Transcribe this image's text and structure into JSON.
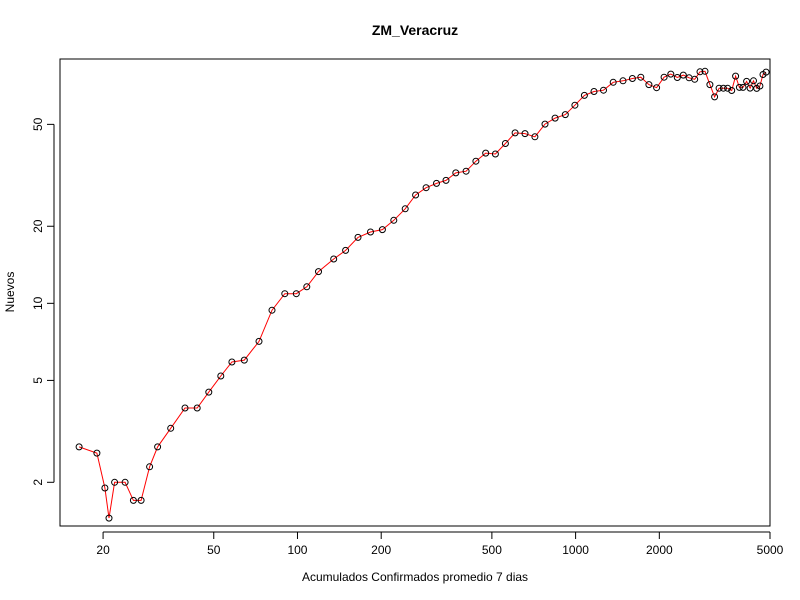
{
  "chart_data": {
    "type": "scatter",
    "title": "ZM_Veracruz",
    "xlabel": "Acumulados Confirmados promedio  7  dias",
    "ylabel": "Nuevos",
    "x_scale": "log",
    "y_scale": "log",
    "xlim": [
      14,
      5000
    ],
    "ylim": [
      1.35,
      90
    ],
    "x_ticks": [
      20,
      50,
      100,
      200,
      500,
      1000,
      2000,
      5000
    ],
    "x_tick_labels": [
      "20",
      "50",
      "100",
      "200",
      "500",
      "1000",
      "2000",
      "5000"
    ],
    "y_ticks": [
      2,
      5,
      10,
      20,
      50
    ],
    "y_tick_labels": [
      "2",
      "5",
      "10",
      "20",
      "50"
    ],
    "grid": false,
    "line_color": "#ff0000",
    "point_color": "#000000",
    "series": [
      {
        "x": [
          16.4,
          19.0,
          20.3,
          21.0,
          22.0,
          24.0,
          25.7,
          27.4,
          29.4,
          31.4,
          35.0,
          39.4,
          43.6,
          48.0,
          53.0,
          58.1,
          64.4,
          72.7,
          81.0,
          90.0,
          99.0,
          108.0,
          119.0,
          135.0,
          149.0,
          165.0,
          183.0,
          202.0,
          222.0,
          244.0,
          266.0,
          290.0,
          316.0,
          342.0,
          371.0,
          404.0,
          438.0,
          475.0,
          515.0,
          559.0,
          606.0,
          658.0,
          714.0,
          776.0,
          844.0,
          918.0,
          994.0,
          1076.0,
          1165.0,
          1260.0,
          1365.0,
          1480.0,
          1600.0,
          1715.0,
          1835.0,
          1955.0,
          2080.0,
          2200.0,
          2320.0,
          2440.0,
          2560.0,
          2680.0,
          2800.0,
          2920.0,
          3040.0,
          3160.0,
          3280.0,
          3400.0,
          3520.0,
          3640.0,
          3760.0,
          3880.0,
          4000.0,
          4120.0,
          4240.0,
          4360.0,
          4480.0,
          4600.0,
          4720.0,
          4840.0
        ],
        "y": [
          2.75,
          2.6,
          1.9,
          1.45,
          2.0,
          2.0,
          1.7,
          1.7,
          2.3,
          2.75,
          3.25,
          3.9,
          3.9,
          4.5,
          5.2,
          5.9,
          6.0,
          7.1,
          9.4,
          10.9,
          10.9,
          11.6,
          13.3,
          14.9,
          16.1,
          18.1,
          19.0,
          19.4,
          21.1,
          23.4,
          26.5,
          28.3,
          29.4,
          30.2,
          32.3,
          32.8,
          35.9,
          38.6,
          38.3,
          42.1,
          46.3,
          46.0,
          44.7,
          50.1,
          52.9,
          54.6,
          59.4,
          64.9,
          67.2,
          68.0,
          73.0,
          74.0,
          75.5,
          76.4,
          71.5,
          69.5,
          76.4,
          78.6,
          76.2,
          77.9,
          76.0,
          75.0,
          80.2,
          80.6,
          71.5,
          64.0,
          69.2,
          69.2,
          69.2,
          67.8,
          77.2,
          69.7,
          69.7,
          73.6,
          69.3,
          74.0,
          69.1,
          70.6,
          78.3,
          80.0
        ]
      }
    ]
  }
}
